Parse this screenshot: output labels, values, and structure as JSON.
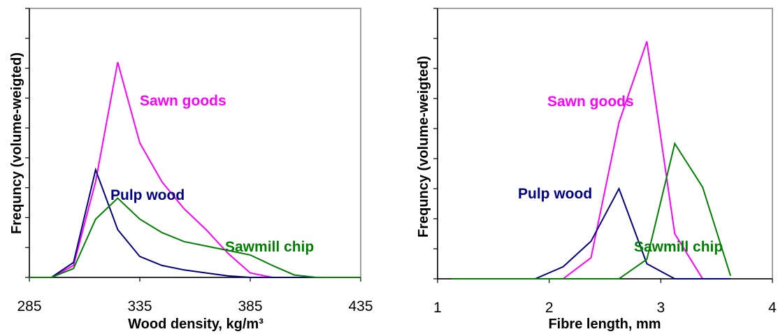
{
  "chart_data": [
    {
      "type": "line",
      "xlabel": "Wood density, kg/m³",
      "ylabel": "Frequncy (volume-weigted)",
      "xlim": [
        285,
        435
      ],
      "ylim": [
        0,
        9
      ],
      "xticks": [
        285,
        335,
        385,
        435
      ],
      "yticks": [
        0,
        1,
        2,
        3,
        4,
        5,
        6,
        7,
        8,
        9
      ],
      "x": [
        285,
        295,
        305,
        315,
        325,
        335,
        345,
        355,
        365,
        375,
        385,
        395,
        405,
        415,
        425,
        435
      ],
      "series": [
        {
          "name": "Sawn goods",
          "color": "#ff00ff",
          "values": [
            0,
            0,
            0.4,
            3.2,
            7.2,
            4.5,
            3.2,
            2.3,
            1.6,
            0.8,
            0.15,
            0,
            0,
            0,
            0,
            0
          ]
        },
        {
          "name": "Pulp wood",
          "color": "#000080",
          "values": [
            0,
            0,
            0.5,
            3.6,
            1.6,
            0.7,
            0.4,
            0.25,
            0.15,
            0.05,
            0,
            0,
            0,
            0,
            0,
            0
          ]
        },
        {
          "name": "Sawmill chip",
          "color": "#008000",
          "values": [
            0,
            0,
            0.3,
            1.95,
            2.65,
            1.95,
            1.5,
            1.2,
            1.05,
            0.9,
            0.75,
            0.4,
            0.08,
            0,
            0,
            0
          ]
        }
      ],
      "grid": false
    },
    {
      "type": "line",
      "xlabel": "Fibre length, mm",
      "ylabel": "Frequncy (volume-weigted)",
      "xlim": [
        1,
        4
      ],
      "ylim": [
        0,
        9
      ],
      "xticks": [
        1,
        2,
        3,
        4
      ],
      "yticks": [
        0,
        1,
        2,
        3,
        4,
        5,
        6,
        7,
        8,
        9
      ],
      "x": [
        1.125,
        1.375,
        1.625,
        1.875,
        2.125,
        2.375,
        2.625,
        2.875,
        3.125,
        3.375,
        3.625
      ],
      "series": [
        {
          "name": "Sawn goods",
          "color": "#ff00ff",
          "values": [
            0,
            0,
            0,
            0,
            0,
            0.7,
            5.2,
            7.9,
            1.5,
            0,
            0
          ]
        },
        {
          "name": "Pulp wood",
          "color": "#000080",
          "values": [
            0,
            0,
            0,
            0,
            0.4,
            1.25,
            3.0,
            0.5,
            0,
            0,
            0
          ]
        },
        {
          "name": "Sawmill chip",
          "color": "#008000",
          "values": [
            0,
            0,
            0,
            0,
            0,
            0,
            0,
            0.65,
            4.5,
            3.05,
            0.1
          ]
        }
      ],
      "grid": false
    }
  ]
}
